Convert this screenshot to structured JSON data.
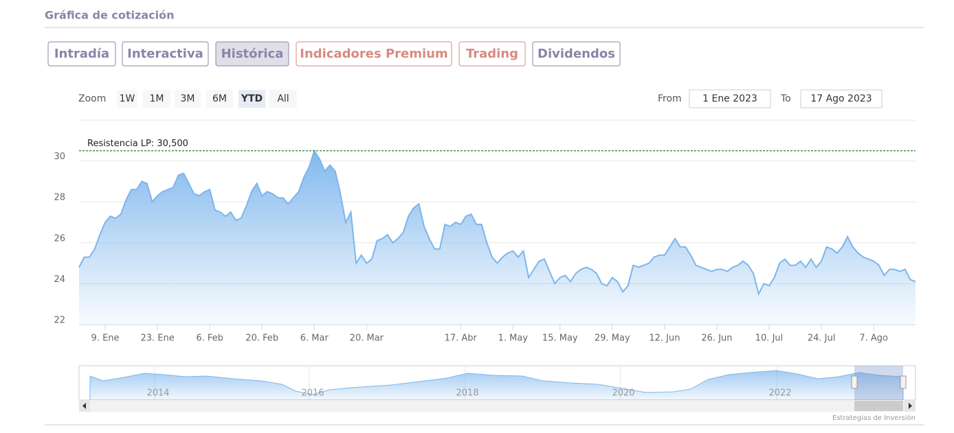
{
  "header": {
    "title": "Gráfica de cotización"
  },
  "tabs": [
    {
      "label": "Intradía",
      "color": "#8a84a8"
    },
    {
      "label": "Interactiva",
      "color": "#8a84a8"
    },
    {
      "label": "Histórica",
      "color": "#8a84a8"
    },
    {
      "label": "Indicadores Premium",
      "color": "#d98a80"
    },
    {
      "label": "Trading",
      "color": "#d98a80"
    },
    {
      "label": "Dividendos",
      "color": "#8a84a8"
    }
  ],
  "active_tab": 2,
  "zoom": {
    "label": "Zoom",
    "buttons": [
      "1W",
      "1M",
      "3M",
      "6M",
      "YTD",
      "All"
    ],
    "active": 4
  },
  "range": {
    "from_label": "From",
    "from": "1 Ene 2023",
    "to_label": "To",
    "to": "17 Ago 2023"
  },
  "navigator": {
    "labels": [
      "2014",
      "2016",
      "2018",
      "2020",
      "2022"
    ]
  },
  "credit": "Estrategias de Inversión",
  "chart_data": {
    "type": "area",
    "color": "#7cb5ec",
    "grid": true,
    "ylim": [
      22,
      32
    ],
    "yticks": [
      22,
      24,
      26,
      28,
      30
    ],
    "annotation": {
      "label": "Resistencia LP: 30,500",
      "value": 30.5,
      "color": "#2e8b3e"
    },
    "categories": [
      null,
      null,
      null,
      null,
      null,
      "9. Ene",
      null,
      null,
      null,
      null,
      null,
      null,
      null,
      null,
      null,
      "23. Ene",
      null,
      null,
      null,
      null,
      null,
      null,
      null,
      null,
      null,
      "6. Feb",
      null,
      null,
      null,
      null,
      null,
      null,
      null,
      null,
      null,
      "20. Feb",
      null,
      null,
      null,
      null,
      null,
      null,
      null,
      null,
      null,
      "6. Mar",
      null,
      null,
      null,
      null,
      null,
      null,
      null,
      null,
      null,
      "20. Mar",
      null,
      null,
      null,
      null,
      null,
      null,
      null,
      null,
      null,
      null,
      null,
      null,
      null,
      null,
      null,
      null,
      null,
      "17. Abr",
      null,
      null,
      null,
      null,
      null,
      null,
      null,
      null,
      null,
      "1. May",
      null,
      null,
      null,
      null,
      null,
      null,
      null,
      null,
      "15. May",
      null,
      null,
      null,
      null,
      null,
      null,
      null,
      null,
      null,
      "29. May",
      null,
      null,
      null,
      null,
      null,
      null,
      null,
      null,
      null,
      "12. Jun",
      null,
      null,
      null,
      null,
      null,
      null,
      null,
      null,
      null,
      "26. Jun",
      null,
      null,
      null,
      null,
      null,
      null,
      null,
      null,
      null,
      "10. Jul",
      null,
      null,
      null,
      null,
      null,
      null,
      null,
      null,
      null,
      "24. Jul",
      null,
      null,
      null,
      null,
      null,
      null,
      null,
      null,
      null,
      "7. Ago",
      null,
      null,
      null,
      null,
      null,
      null,
      null,
      null
    ],
    "values": [
      24.8,
      25.3,
      25.3,
      25.7,
      26.4,
      27.0,
      27.3,
      27.2,
      27.4,
      28.1,
      28.6,
      28.6,
      29.0,
      28.9,
      28.0,
      28.3,
      28.5,
      28.6,
      28.7,
      29.3,
      29.4,
      28.9,
      28.4,
      28.3,
      28.5,
      28.6,
      27.6,
      27.5,
      27.3,
      27.5,
      27.1,
      27.2,
      27.8,
      28.5,
      28.9,
      28.3,
      28.5,
      28.4,
      28.2,
      28.2,
      27.9,
      28.2,
      28.5,
      29.2,
      29.7,
      30.5,
      30.1,
      29.5,
      29.8,
      29.5,
      28.4,
      27.0,
      27.5,
      25.0,
      25.4,
      25.0,
      25.2,
      26.1,
      26.2,
      26.4,
      26.0,
      26.2,
      26.5,
      27.3,
      27.7,
      27.9,
      26.8,
      26.2,
      25.7,
      25.7,
      26.9,
      26.8,
      27.0,
      26.9,
      27.3,
      27.4,
      26.9,
      26.9,
      26.0,
      25.3,
      25.0,
      25.3,
      25.5,
      25.6,
      25.3,
      25.6,
      24.3,
      24.7,
      25.1,
      25.2,
      24.6,
      24.0,
      24.3,
      24.4,
      24.1,
      24.5,
      24.7,
      24.8,
      24.7,
      24.5,
      24.0,
      23.9,
      24.3,
      24.1,
      23.6,
      23.9,
      24.9,
      24.8,
      24.9,
      25.0,
      25.3,
      25.4,
      25.4,
      25.8,
      26.2,
      25.8,
      25.8,
      25.4,
      24.9,
      24.8,
      24.7,
      24.6,
      24.7,
      24.7,
      24.6,
      24.8,
      24.9,
      25.1,
      24.9,
      24.5,
      23.5,
      24.0,
      23.9,
      24.3,
      25.0,
      25.2,
      24.9,
      24.9,
      25.1,
      24.8,
      25.2,
      24.8,
      25.1,
      25.8,
      25.7,
      25.5,
      25.8,
      26.3,
      25.8,
      25.5,
      25.3,
      25.2,
      25.1,
      24.9,
      24.4,
      24.7,
      24.7,
      24.6,
      24.7,
      24.2,
      24.1
    ]
  }
}
